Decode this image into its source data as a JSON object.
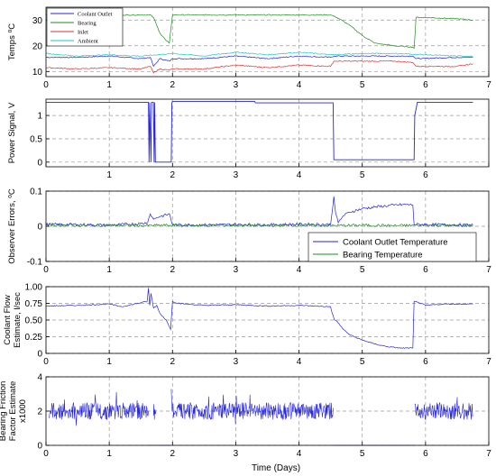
{
  "colors": {
    "blue": "#2626d9",
    "green": "#1e8c1e",
    "red": "#e03030",
    "cyan": "#20c6c6",
    "grid": "#9a9a9a"
  },
  "xlabel": "Time (Days)",
  "x_ticks": [
    "0",
    "1",
    "2",
    "3",
    "4",
    "5",
    "6",
    "7"
  ],
  "panel2_x_ticks": [
    "1",
    "2",
    "3",
    "4",
    "5",
    "6"
  ],
  "chart_data": [
    {
      "type": "line",
      "ylabel_lines": [
        "Temps ⁰C"
      ],
      "xlim": [
        0,
        7
      ],
      "ylim": [
        8,
        35
      ],
      "y_ticks": [
        10,
        20,
        30
      ],
      "y_tick_labels": [
        "10",
        "20",
        "30"
      ],
      "grid": true,
      "legend": "top-left",
      "series": [
        {
          "name": "Coolant Outlet",
          "color_key": "blue",
          "x": [
            0,
            0.5,
            1,
            1.5,
            1.65,
            1.7,
            1.8,
            1.95,
            2.0,
            2.5,
            3.0,
            3.5,
            4.0,
            4.5,
            4.55,
            5.0,
            5.5,
            5.8,
            5.85,
            6.5,
            6.75
          ],
          "y": [
            15.5,
            15.5,
            16,
            15,
            15.5,
            12,
            15,
            14,
            15,
            15,
            16,
            15,
            16,
            15.5,
            16,
            16,
            16,
            16,
            15,
            15.5,
            15.5
          ]
        },
        {
          "name": "Bearing",
          "color_key": "green",
          "x": [
            0,
            0.5,
            1,
            1.5,
            1.65,
            1.7,
            1.75,
            1.8,
            1.9,
            1.95,
            2.0,
            3.0,
            4.0,
            4.5,
            4.6,
            4.8,
            5.0,
            5.2,
            5.5,
            5.8,
            5.82,
            5.85,
            6.0,
            6.5,
            6.75
          ],
          "y": [
            32,
            32,
            32,
            32,
            32,
            31,
            28,
            25,
            22,
            21,
            32,
            32,
            32,
            32,
            31,
            28,
            24,
            21,
            20,
            19.5,
            19,
            31,
            31,
            30.5,
            30
          ]
        },
        {
          "name": "Inlet",
          "color_key": "red",
          "x": [
            0,
            0.5,
            1,
            1.5,
            1.65,
            1.7,
            1.8,
            1.95,
            2.0,
            2.5,
            3.0,
            3.5,
            4.0,
            4.5,
            4.55,
            5.0,
            5.5,
            5.8,
            5.85,
            6.5,
            6.75
          ],
          "y": [
            11.5,
            11,
            11.5,
            11,
            12,
            9.5,
            11,
            10.5,
            11,
            11,
            12.5,
            11.5,
            12.5,
            12,
            14,
            14,
            14,
            13.5,
            12,
            12,
            13
          ]
        },
        {
          "name": "Ambient",
          "color_key": "cyan",
          "x": [
            0,
            0.5,
            1,
            1.5,
            2,
            2.5,
            3,
            3.5,
            4,
            4.5,
            5,
            5.5,
            6,
            6.5,
            6.75
          ],
          "y": [
            17,
            16,
            16.5,
            16,
            17,
            16,
            17.5,
            16.5,
            17.5,
            16.5,
            17,
            17,
            16.5,
            16,
            16
          ]
        }
      ]
    },
    {
      "type": "line",
      "ylabel_lines": [
        "Power Signal, V"
      ],
      "xlim": [
        0,
        7
      ],
      "ylim": [
        -0.1,
        1.35
      ],
      "y_ticks": [
        0,
        0.5,
        1
      ],
      "y_tick_labels": [
        "0",
        "0.5",
        "1"
      ],
      "grid": true,
      "series": [
        {
          "color_key": "blue",
          "x": [
            0,
            1.62,
            1.63,
            1.64,
            1.66,
            1.67,
            1.7,
            1.71,
            1.72,
            1.73,
            1.74,
            1.98,
            1.99,
            2.0,
            3.3,
            3.31,
            4.54,
            4.55,
            5.82,
            5.83,
            5.86,
            5.87,
            6.75
          ],
          "y": [
            1.28,
            1.28,
            0,
            1.28,
            0,
            1.28,
            1.28,
            0,
            1.28,
            0,
            0,
            0,
            1.28,
            1.3,
            1.3,
            1.27,
            1.27,
            0.05,
            0.05,
            1.0,
            1.2,
            1.28,
            1.28
          ]
        }
      ]
    },
    {
      "type": "line",
      "ylabel_lines": [
        "Observer Errors, ⁰C"
      ],
      "xlim": [
        0,
        7
      ],
      "ylim": [
        -0.1,
        0.1
      ],
      "y_ticks": [
        -0.1,
        0,
        0.1
      ],
      "y_tick_labels": [
        "-0.1",
        "0",
        "0.1"
      ],
      "grid": true,
      "legend": "bottom-right",
      "series": [
        {
          "name": "Coolant Outlet Temperature",
          "color_key": "blue",
          "x": [
            0,
            0.5,
            1,
            1.5,
            1.6,
            1.62,
            1.65,
            1.7,
            1.75,
            1.8,
            1.9,
            1.95,
            2.0,
            2.5,
            3.0,
            3.5,
            4.0,
            4.5,
            4.55,
            4.58,
            4.62,
            4.7,
            4.8,
            5.0,
            5.2,
            5.5,
            5.7,
            5.8,
            5.82,
            6.0,
            6.5,
            6.75
          ],
          "y": [
            0.005,
            0.005,
            0.003,
            0.008,
            0.01,
            0.02,
            0.035,
            0.02,
            0.025,
            0.028,
            0.032,
            0.036,
            0.004,
            0.004,
            0.005,
            0.004,
            0.006,
            0.005,
            0.085,
            0.035,
            0.01,
            0.03,
            0.04,
            0.05,
            0.055,
            0.06,
            0.062,
            0.06,
            0.005,
            0.005,
            0.004,
            0.004
          ]
        },
        {
          "name": "Bearing Temperature",
          "color_key": "green",
          "x": [
            0,
            0.5,
            1,
            1.5,
            2,
            2.5,
            3,
            3.5,
            4,
            4.5,
            5,
            5.5,
            6,
            6.5,
            6.75
          ],
          "y": [
            0.004,
            0.002,
            0.003,
            0.002,
            0.003,
            0.002,
            0.003,
            0.002,
            0.003,
            0.002,
            0.003,
            0.002,
            0.003,
            0.002,
            0.002
          ]
        }
      ]
    },
    {
      "type": "line",
      "ylabel_lines": [
        "Coolant Flow",
        "Estimate, l/sec"
      ],
      "xlim": [
        0,
        7
      ],
      "ylim": [
        0,
        1
      ],
      "y_ticks": [
        0,
        0.25,
        0.5,
        0.75,
        1
      ],
      "y_tick_labels": [
        "0",
        "0.25",
        "0.50",
        "0.75",
        "1.00"
      ],
      "grid": true,
      "series": [
        {
          "color_key": "blue",
          "x": [
            0,
            0.5,
            1,
            1.2,
            1.5,
            1.6,
            1.62,
            1.64,
            1.66,
            1.7,
            1.75,
            1.8,
            1.9,
            1.97,
            2.0,
            2.05,
            2.2,
            2.5,
            3.0,
            3.5,
            4.0,
            4.5,
            4.52,
            4.56,
            4.6,
            4.7,
            4.8,
            5.0,
            5.2,
            5.4,
            5.6,
            5.8,
            5.82,
            5.9,
            6.0,
            6.3,
            6.75
          ],
          "y": [
            0.71,
            0.72,
            0.74,
            0.7,
            0.76,
            0.78,
            0.98,
            0.72,
            0.9,
            0.68,
            0.72,
            0.6,
            0.5,
            0.36,
            0.78,
            0.76,
            0.74,
            0.72,
            0.73,
            0.71,
            0.72,
            0.7,
            0.62,
            0.5,
            0.48,
            0.36,
            0.28,
            0.2,
            0.14,
            0.1,
            0.08,
            0.08,
            0.78,
            0.76,
            0.72,
            0.74,
            0.74
          ]
        }
      ]
    },
    {
      "type": "line",
      "ylabel_lines": [
        "Bearing Friction",
        "Factor Estimate",
        "x1000"
      ],
      "xlim": [
        0,
        7
      ],
      "ylim": [
        0,
        4
      ],
      "y_ticks": [
        0,
        2,
        4
      ],
      "y_tick_labels": [
        "0",
        "2",
        "4"
      ],
      "grid": true,
      "series": [
        {
          "color_key": "blue",
          "mean": 2.0,
          "amplitude": 0.5,
          "segments": [
            [
              0.05,
              1.62
            ],
            [
              1.7,
              1.74
            ],
            [
              1.98,
              4.54
            ],
            [
              5.83,
              6.75
            ]
          ],
          "flat_zero": [
            [
              1.62,
              1.7
            ],
            [
              1.74,
              1.98
            ],
            [
              4.54,
              5.83
            ]
          ]
        }
      ]
    }
  ],
  "legend_panel1": [
    "Coolant Outlet",
    "Bearing",
    "Inlet",
    "Ambient"
  ],
  "legend_panel3": [
    "Coolant Outlet Temperature",
    "Bearing Temperature"
  ]
}
